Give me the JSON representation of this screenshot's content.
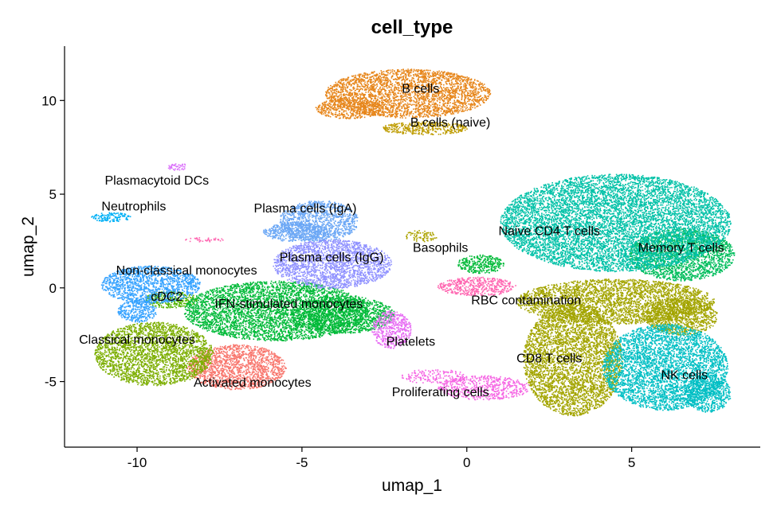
{
  "chart_data": {
    "type": "scatter",
    "title": "cell_type",
    "xlabel": "umap_1",
    "ylabel": "umap_2",
    "xlim": [
      -12.2,
      8.9
    ],
    "ylim": [
      -8.5,
      12.9
    ],
    "xticks": [
      -10,
      -5,
      0,
      5
    ],
    "yticks": [
      -5,
      0,
      5,
      10
    ],
    "xtick_labels": [
      "-10",
      "-5",
      "0",
      "5"
    ],
    "ytick_labels": [
      "-5",
      "0",
      "5",
      "10"
    ],
    "grid": false,
    "legend": "none",
    "point_size": 1,
    "series": [
      {
        "name": "Activated monocytes",
        "color": "#F8766D",
        "label_at": [
          -6.5,
          -5.1
        ],
        "blobs": [
          {
            "center": [
              -7.0,
              -4.2
            ],
            "radius": [
              1.5,
              1.2
            ],
            "density": 1.0
          }
        ]
      },
      {
        "name": "B cells",
        "color": "#E7861B",
        "label_at": [
          -1.4,
          10.6
        ],
        "blobs": [
          {
            "center": [
              -1.8,
              10.4
            ],
            "radius": [
              2.5,
              1.3
            ],
            "density": 1.0
          },
          {
            "center": [
              -3.6,
              9.6
            ],
            "radius": [
              1.0,
              0.55
            ],
            "density": 1.0
          }
        ]
      },
      {
        "name": "B cells (naive)",
        "color": "#BE9C00",
        "label_at": [
          -0.5,
          8.8
        ],
        "blobs": [
          {
            "center": [
              -1.3,
              8.55
            ],
            "radius": [
              1.3,
              0.35
            ],
            "density": 1.0
          }
        ]
      },
      {
        "name": "Basophils",
        "color": "#ACA300",
        "label_at": [
          -0.8,
          2.1
        ],
        "blobs": [
          {
            "center": [
              -1.4,
              2.8
            ],
            "radius": [
              0.5,
              0.3
            ],
            "density": 0.6
          }
        ]
      },
      {
        "name": "CD8 T cells",
        "color": "#A3A500",
        "label_at": [
          2.5,
          -3.8
        ],
        "blobs": [
          {
            "center": [
              3.2,
              -3.8
            ],
            "radius": [
              1.5,
              3.0
            ],
            "density": 1.0
          },
          {
            "center": [
              4.5,
              -0.7
            ],
            "radius": [
              3.0,
              1.2
            ],
            "density": 1.0
          },
          {
            "center": [
              6.5,
              -1.5
            ],
            "radius": [
              1.1,
              1.0
            ],
            "density": 1.0
          }
        ]
      },
      {
        "name": "Classical monocytes",
        "color": "#7CAE00",
        "label_at": [
          -10.0,
          -2.8
        ],
        "blobs": [
          {
            "center": [
              -9.5,
              -3.5
            ],
            "radius": [
              1.8,
              1.7
            ],
            "density": 1.0
          }
        ]
      },
      {
        "name": "cDC2",
        "color": "#53B400",
        "label_at": [
          -9.1,
          -0.5
        ],
        "blobs": [
          {
            "center": [
              -9.0,
              -0.6
            ],
            "radius": [
              0.8,
              0.45
            ],
            "density": 1.0
          }
        ]
      },
      {
        "name": "IFN-stimulated monocytes",
        "color": "#00BA38",
        "label_at": [
          -5.4,
          -0.9
        ],
        "blobs": [
          {
            "center": [
              -5.8,
              -1.2
            ],
            "radius": [
              2.8,
              1.6
            ],
            "density": 1.0
          },
          {
            "center": [
              -3.8,
              -1.4
            ],
            "radius": [
              1.6,
              1.0
            ],
            "density": 1.0
          },
          {
            "center": [
              0.4,
              1.3
            ],
            "radius": [
              0.7,
              0.5
            ],
            "density": 1.0
          }
        ]
      },
      {
        "name": "Memory T cells",
        "color": "#00BD5C",
        "label_at": [
          6.5,
          2.1
        ],
        "blobs": [
          {
            "center": [
              6.5,
              1.8
            ],
            "radius": [
              1.6,
              1.4
            ],
            "density": 1.0
          }
        ]
      },
      {
        "name": "Naive CD4 T cells",
        "color": "#00C1A7",
        "label_at": [
          2.5,
          3.0
        ],
        "blobs": [
          {
            "center": [
              4.5,
              3.5
            ],
            "radius": [
              3.5,
              2.6
            ],
            "density": 1.0
          }
        ]
      },
      {
        "name": "NK cells",
        "color": "#00BFC4",
        "label_at": [
          6.6,
          -4.7
        ],
        "blobs": [
          {
            "center": [
              6.0,
              -4.2
            ],
            "radius": [
              1.9,
              2.3
            ],
            "density": 1.0
          },
          {
            "center": [
              7.3,
              -5.6
            ],
            "radius": [
              0.7,
              1.0
            ],
            "density": 1.0
          }
        ]
      },
      {
        "name": "Neutrophils",
        "color": "#00B0F6",
        "label_at": [
          -10.1,
          4.3
        ],
        "blobs": [
          {
            "center": [
              -10.8,
              3.8
            ],
            "radius": [
              0.6,
              0.25
            ],
            "density": 1.0
          }
        ]
      },
      {
        "name": "Non-classical monocytes",
        "color": "#35A2FF",
        "label_at": [
          -8.5,
          0.9
        ],
        "blobs": [
          {
            "center": [
              -9.6,
              0.2
            ],
            "radius": [
              1.5,
              1.0
            ],
            "density": 1.0
          },
          {
            "center": [
              -10.0,
              -1.2
            ],
            "radius": [
              0.6,
              0.6
            ],
            "density": 1.0
          }
        ]
      },
      {
        "name": "Plasma cells (IgA)",
        "color": "#6BA7F5",
        "label_at": [
          -4.9,
          4.2
        ],
        "blobs": [
          {
            "center": [
              -4.5,
              3.6
            ],
            "radius": [
              1.2,
              1.1
            ],
            "density": 1.0
          },
          {
            "center": [
              -5.2,
              3.0
            ],
            "radius": [
              1.0,
              0.5
            ],
            "density": 1.0
          }
        ]
      },
      {
        "name": "Plasma cells (IgG)",
        "color": "#8F91FF",
        "label_at": [
          -4.1,
          1.6
        ],
        "blobs": [
          {
            "center": [
              -4.1,
              1.3
            ],
            "radius": [
              1.8,
              1.3
            ],
            "density": 1.0
          }
        ]
      },
      {
        "name": "Plasmacytoid DCs",
        "color": "#DB72FB",
        "label_at": [
          -9.4,
          5.7
        ],
        "blobs": [
          {
            "center": [
              -8.8,
              6.5
            ],
            "radius": [
              0.3,
              0.22
            ],
            "density": 0.8
          }
        ]
      },
      {
        "name": "Platelets",
        "color": "#E76BF3",
        "label_at": [
          -1.7,
          -2.9
        ],
        "blobs": [
          {
            "center": [
              -2.3,
              -2.2
            ],
            "radius": [
              0.6,
              1.0
            ],
            "density": 0.9
          }
        ]
      },
      {
        "name": "Proliferating cells",
        "color": "#F564E3",
        "label_at": [
          -0.8,
          -5.6
        ],
        "blobs": [
          {
            "center": [
              0.5,
              -5.3
            ],
            "radius": [
              1.4,
              0.65
            ],
            "density": 0.7
          },
          {
            "center": [
              -1.0,
              -4.7
            ],
            "radius": [
              1.0,
              0.4
            ],
            "density": 0.5
          }
        ]
      },
      {
        "name": "RBC contamination",
        "color": "#FF64B0",
        "label_at": [
          1.8,
          -0.7
        ],
        "blobs": [
          {
            "center": [
              0.3,
              0.1
            ],
            "radius": [
              1.2,
              0.5
            ],
            "density": 0.9
          },
          {
            "center": [
              -8.0,
              2.6
            ],
            "radius": [
              0.6,
              0.12
            ],
            "density": 0.6
          }
        ]
      }
    ]
  }
}
